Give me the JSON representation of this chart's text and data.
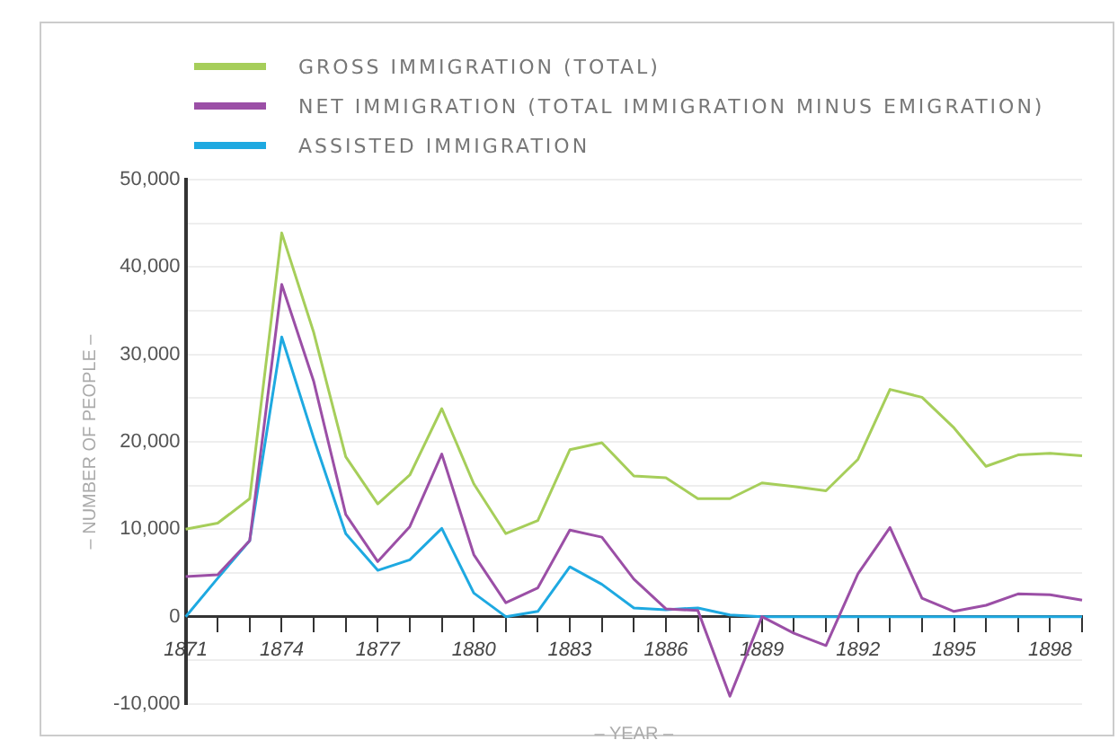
{
  "chart_data": {
    "type": "line",
    "xlabel": "– YEAR –",
    "ylabel": "– NUMBER OF PEOPLE –",
    "categories": [
      "1871",
      null,
      null,
      "1874",
      null,
      null,
      "1877",
      null,
      null,
      "1880",
      null,
      null,
      "1883",
      null,
      null,
      "1886",
      null,
      null,
      "1889",
      null,
      null,
      "1892",
      null,
      null,
      "1895",
      null,
      null,
      "1898",
      null
    ],
    "series": [
      {
        "name": "GROSS IMMIGRATION (TOTAL)",
        "color": "#a6ce5a",
        "values": [
          10000,
          10700,
          13500,
          43900,
          32500,
          18300,
          12900,
          16200,
          23800,
          15200,
          9500,
          11000,
          19100,
          19900,
          16100,
          15900,
          13500,
          13500,
          15300,
          14900,
          14400,
          18000,
          26000,
          25100,
          21600,
          17200,
          18500,
          18700,
          18400
        ]
      },
      {
        "name": "NET IMMIGRATION (TOTAL IMMIGRATION MINUS EMIGRATION)",
        "color": "#9b4fa6",
        "values": [
          4600,
          4800,
          8700,
          38000,
          26900,
          11700,
          6300,
          10300,
          18600,
          7100,
          1600,
          3300,
          9900,
          9100,
          4300,
          900,
          700,
          -9100,
          0,
          -1900,
          -3300,
          4900,
          10200,
          2100,
          600,
          1300,
          2600,
          2500,
          1900
        ]
      },
      {
        "name": "ASSISTED IMMIGRATION",
        "color": "#1ea9e1",
        "values": [
          0,
          4400,
          8700,
          32000,
          20400,
          9500,
          5300,
          6500,
          10100,
          2700,
          0,
          600,
          5700,
          3700,
          1000,
          800,
          1000,
          200,
          0,
          0,
          0,
          0,
          0,
          0,
          0,
          0,
          0,
          0,
          0
        ]
      }
    ],
    "ylim": [
      -10000,
      50000
    ],
    "yticks": [
      {
        "value": -10000,
        "label": "-10,000"
      },
      {
        "value": -5000,
        "label": null
      },
      {
        "value": 0,
        "label": "0"
      },
      {
        "value": 5000,
        "label": null
      },
      {
        "value": 10000,
        "label": "10,000"
      },
      {
        "value": 15000,
        "label": null
      },
      {
        "value": 20000,
        "label": "20,000"
      },
      {
        "value": 25000,
        "label": null
      },
      {
        "value": 30000,
        "label": "30,000"
      },
      {
        "value": 35000,
        "label": null
      },
      {
        "value": 40000,
        "label": "40,000"
      },
      {
        "value": 45000,
        "label": null
      },
      {
        "value": 50000,
        "label": "50,000"
      }
    ],
    "grid": "y",
    "legend": "top left",
    "marker": "none",
    "line_style": "solid"
  }
}
